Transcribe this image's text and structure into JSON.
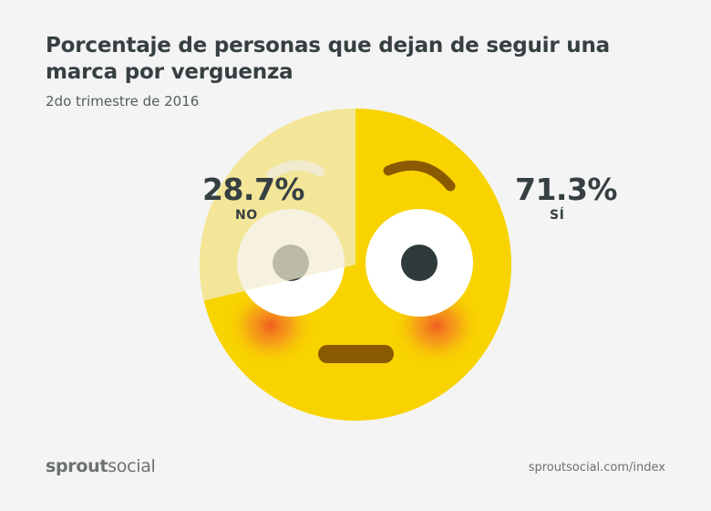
{
  "title": "Porcentaje de personas que dejan de seguir una marca por verguenza",
  "subtitle": "2do trimestre de 2016",
  "chart_data": {
    "type": "pie",
    "title": "Porcentaje de personas que dejan de seguir una marca por verguenza",
    "subtitle": "2do trimestre de 2016",
    "slices": [
      {
        "label": "NO",
        "value": 28.7,
        "value_text": "28.7%",
        "color": "#f3edd3"
      },
      {
        "label": "SÍ",
        "value": 71.3,
        "value_text": "71.3%",
        "color": "#f8d300"
      }
    ]
  },
  "colors": {
    "background": "#f3f4f3",
    "face_yellow": "#f8d300",
    "faded_sector": "#f3edd3",
    "text_dark": "#363f42",
    "eye_white": "#ffffff",
    "pupil": "#2f3b3b",
    "mouth_brow": "#8a5a00",
    "blush": "#ef5a2b"
  },
  "footer": {
    "brand_bold": "sprout",
    "brand_regular": "social",
    "url": "sproutsocial.com/index"
  }
}
